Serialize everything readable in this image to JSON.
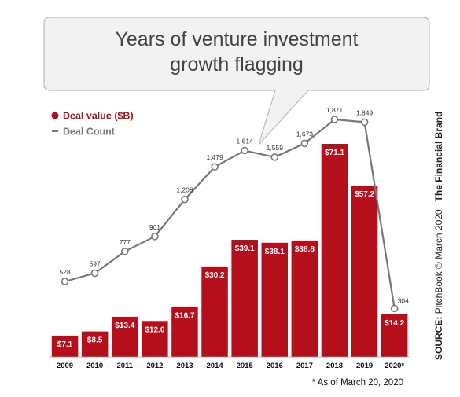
{
  "colors": {
    "bar": "#b50f1b",
    "line": "#777777",
    "title_box_fill": "#f2f2f2",
    "title_box_stroke": "#bbbbbb"
  },
  "title": {
    "line1": "Years of venture investment",
    "line2": "growth flagging"
  },
  "legend": {
    "deal_value": "Deal value ($B)",
    "deal_count": "Deal Count"
  },
  "footnote": "* As of March 20, 2020",
  "source": {
    "prefix": "SOURCE:",
    "text": " PitchBook © March 2020",
    "brand": "The Financial Brand"
  },
  "chart_data": {
    "type": "bar",
    "categories": [
      "2009",
      "2010",
      "2011",
      "2012",
      "2013",
      "2014",
      "2015",
      "2016",
      "2017",
      "2018",
      "2019",
      "2020*"
    ],
    "series": [
      {
        "name": "Deal value ($B)",
        "type": "bar",
        "values": [
          7.1,
          8.5,
          13.4,
          12.0,
          16.7,
          30.2,
          39.1,
          38.1,
          38.8,
          71.1,
          57.2,
          14.2
        ],
        "labels": [
          "$7.1",
          "$8.5",
          "$13.4",
          "$12.0",
          "$16.7",
          "$30.2",
          "$39.1",
          "$38.1",
          "$38.8",
          "$71.1",
          "$57.2",
          "$14.2"
        ]
      },
      {
        "name": "Deal Count",
        "type": "line",
        "values": [
          528,
          597,
          777,
          901,
          1208,
          1479,
          1614,
          1559,
          1673,
          1871,
          1849,
          304
        ],
        "labels": [
          "528",
          "597",
          "777",
          "901",
          "1,208",
          "1,479",
          "1,614",
          "1,559",
          "1,673",
          "1,871",
          "1,849",
          "304"
        ]
      }
    ],
    "grid": false,
    "legend_position": "top-left"
  }
}
